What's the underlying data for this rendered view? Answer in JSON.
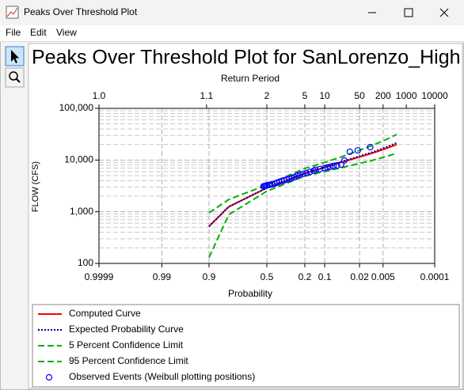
{
  "window": {
    "title": "Peaks Over Threshold Plot",
    "menu": [
      "File",
      "Edit",
      "View"
    ]
  },
  "chart_data": {
    "type": "probability-line",
    "title": "Peaks Over Threshold Plot for SanLorenzo_High",
    "xlabel": "Probability",
    "x2label": "Return Period",
    "ylabel": "FLOW (CFS)",
    "xscale": "normal-probability",
    "yscale": "log",
    "grid": true,
    "xlim": [
      0.9999,
      0.0001
    ],
    "xticks": [
      0.9999,
      0.99,
      0.9,
      0.5,
      0.2,
      0.1,
      0.02,
      0.005,
      0.0001
    ],
    "x2ticks": [
      {
        "value": 1.0001,
        "label": "1.0"
      },
      1.1,
      2,
      5,
      10,
      50,
      200,
      1000,
      10000
    ],
    "ylim": [
      100,
      100000
    ],
    "yticks": [
      100,
      {
        "value": 1000,
        "label": "1,000"
      },
      {
        "value": 10000,
        "label": "10,000"
      },
      {
        "value": 100000,
        "label": "100,000"
      }
    ],
    "series": [
      {
        "name": "Computed Curve",
        "color": "#ff0000",
        "line": "solid",
        "x": [
          0.9,
          0.8,
          0.5,
          0.2,
          0.1,
          0.05,
          0.02,
          0.01,
          0.005,
          0.002
        ],
        "values": [
          520,
          1250,
          2900,
          5500,
          7200,
          9000,
          11500,
          13500,
          16000,
          20000
        ]
      },
      {
        "name": "Expected Probability Curve",
        "color": "#00008b",
        "line": "dotted",
        "x": [
          0.9,
          0.8,
          0.5,
          0.2,
          0.1,
          0.05,
          0.02,
          0.01,
          0.005,
          0.002
        ],
        "values": [
          520,
          1250,
          2900,
          5550,
          7300,
          9200,
          11900,
          14100,
          16900,
          21500
        ]
      },
      {
        "name": "5 Percent Confidence Limit",
        "color": "#00b000",
        "line": "dashed",
        "x": [
          0.9,
          0.8,
          0.5,
          0.2,
          0.1,
          0.05,
          0.02,
          0.01,
          0.005,
          0.002
        ],
        "values": [
          950,
          1730,
          3300,
          6900,
          9000,
          11500,
          15500,
          19000,
          23500,
          31300
        ]
      },
      {
        "name": "95 Percent Confidence Limit",
        "color": "#00b000",
        "line": "dashed",
        "x": [
          0.9,
          0.8,
          0.5,
          0.2,
          0.1,
          0.05,
          0.02,
          0.01,
          0.005,
          0.002
        ],
        "values": [
          130,
          880,
          2500,
          4900,
          6000,
          7100,
          8600,
          9800,
          11300,
          13500
        ]
      },
      {
        "name": "Observed Events (Weibull plotting positions)",
        "color": "#0000ff",
        "line": "none",
        "marker": "circle",
        "x": [
          0.53,
          0.52,
          0.51,
          0.5,
          0.48,
          0.47,
          0.45,
          0.43,
          0.41,
          0.39,
          0.37,
          0.35,
          0.33,
          0.31,
          0.29,
          0.27,
          0.25,
          0.23,
          0.21,
          0.19,
          0.17,
          0.15,
          0.14,
          0.12,
          0.1,
          0.09,
          0.08,
          0.07,
          0.06,
          0.05,
          0.043,
          0.033,
          0.022,
          0.011
        ],
        "values": [
          3100,
          3150,
          3200,
          3250,
          3300,
          3350,
          3400,
          3500,
          3650,
          3800,
          3950,
          4050,
          4200,
          4350,
          4500,
          4700,
          5000,
          5200,
          5400,
          5600,
          5900,
          6200,
          6500,
          6700,
          7000,
          7200,
          7400,
          7700,
          7900,
          8200,
          9800,
          14500,
          15400,
          17800
        ]
      }
    ]
  }
}
